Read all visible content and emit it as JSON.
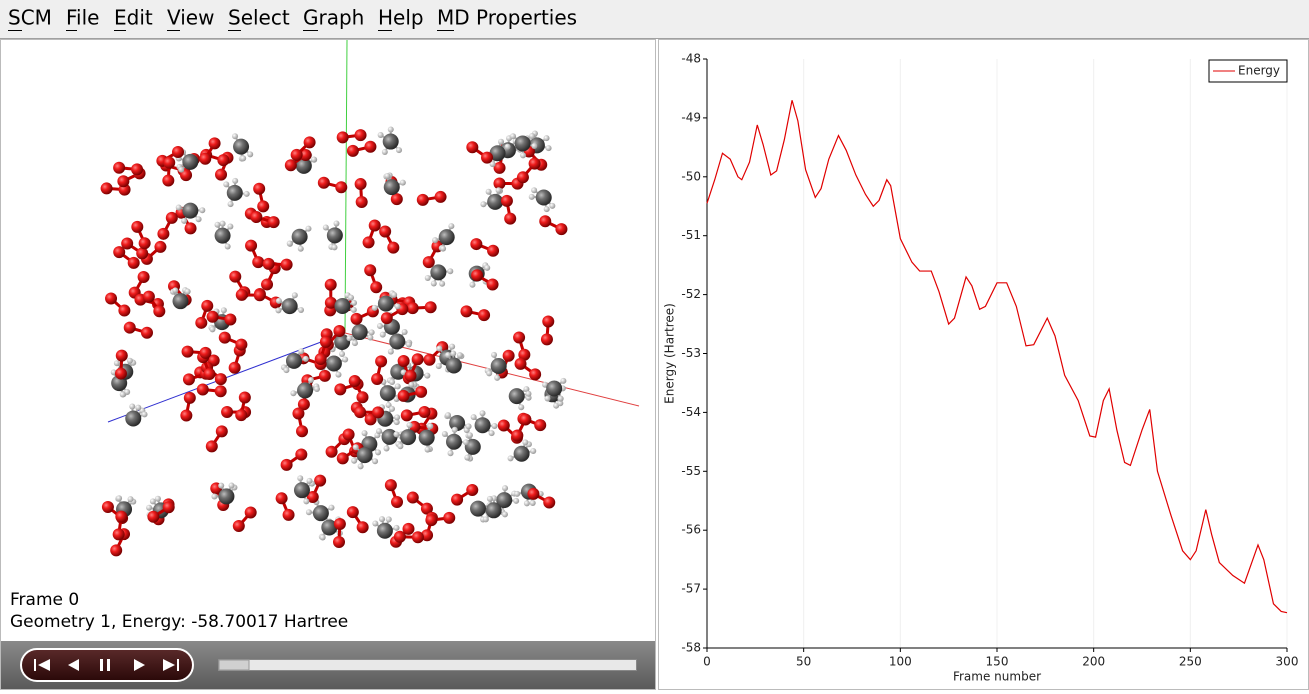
{
  "menu": [
    "SCM",
    "File",
    "Edit",
    "View",
    "Select",
    "Graph",
    "Help",
    "MD Properties"
  ],
  "viewer": {
    "frame": "Frame 0",
    "geometry": "Geometry 1, Energy: -58.70017 Hartree"
  },
  "chart_data": {
    "type": "line",
    "xlabel": "Frame number",
    "ylabel": "Energy (Hartree)",
    "xlim": [
      0,
      300
    ],
    "xticks": [
      0,
      50,
      100,
      150,
      200,
      250,
      300
    ],
    "ylim": [
      -58,
      -48
    ],
    "yticks": [
      -58,
      -57,
      -56,
      -55,
      -54,
      -53,
      -52,
      -51,
      -50,
      -49,
      -48
    ],
    "xgrid": true,
    "legend": "top-right",
    "x": [
      0,
      4,
      8,
      12,
      16,
      18,
      22,
      26,
      29,
      33,
      36,
      40,
      44,
      47,
      51,
      56,
      59,
      63,
      68,
      72,
      77,
      82,
      86,
      89,
      93,
      95,
      100,
      106,
      110,
      116,
      120,
      125,
      128,
      134,
      137,
      141,
      144,
      150,
      155,
      160,
      165,
      169,
      176,
      180,
      185,
      192,
      198,
      201,
      205,
      208,
      212,
      216,
      219,
      225,
      229,
      233,
      240,
      246,
      250,
      253,
      258,
      261,
      265,
      272,
      278,
      285,
      288,
      293,
      297,
      300
    ],
    "series": [
      {
        "name": "Energy",
        "color": "#e00000",
        "values": [
          -50.45,
          -50.05,
          -49.6,
          -49.7,
          -50.0,
          -50.05,
          -49.75,
          -49.12,
          -49.45,
          -49.97,
          -49.9,
          -49.37,
          -48.7,
          -49.05,
          -49.88,
          -50.35,
          -50.2,
          -49.7,
          -49.3,
          -49.55,
          -49.97,
          -50.3,
          -50.5,
          -50.4,
          -50.05,
          -50.15,
          -51.05,
          -51.45,
          -51.6,
          -51.6,
          -51.95,
          -52.5,
          -52.4,
          -51.7,
          -51.85,
          -52.25,
          -52.2,
          -51.8,
          -51.8,
          -52.2,
          -52.87,
          -52.85,
          -52.4,
          -52.7,
          -53.37,
          -53.8,
          -54.4,
          -54.42,
          -53.8,
          -53.6,
          -54.3,
          -54.85,
          -54.9,
          -54.3,
          -53.95,
          -55.0,
          -55.75,
          -56.35,
          -56.5,
          -56.35,
          -55.65,
          -56.07,
          -56.55,
          -56.77,
          -56.9,
          -56.25,
          -56.5,
          -57.25,
          -57.38,
          -57.4
        ]
      }
    ]
  }
}
